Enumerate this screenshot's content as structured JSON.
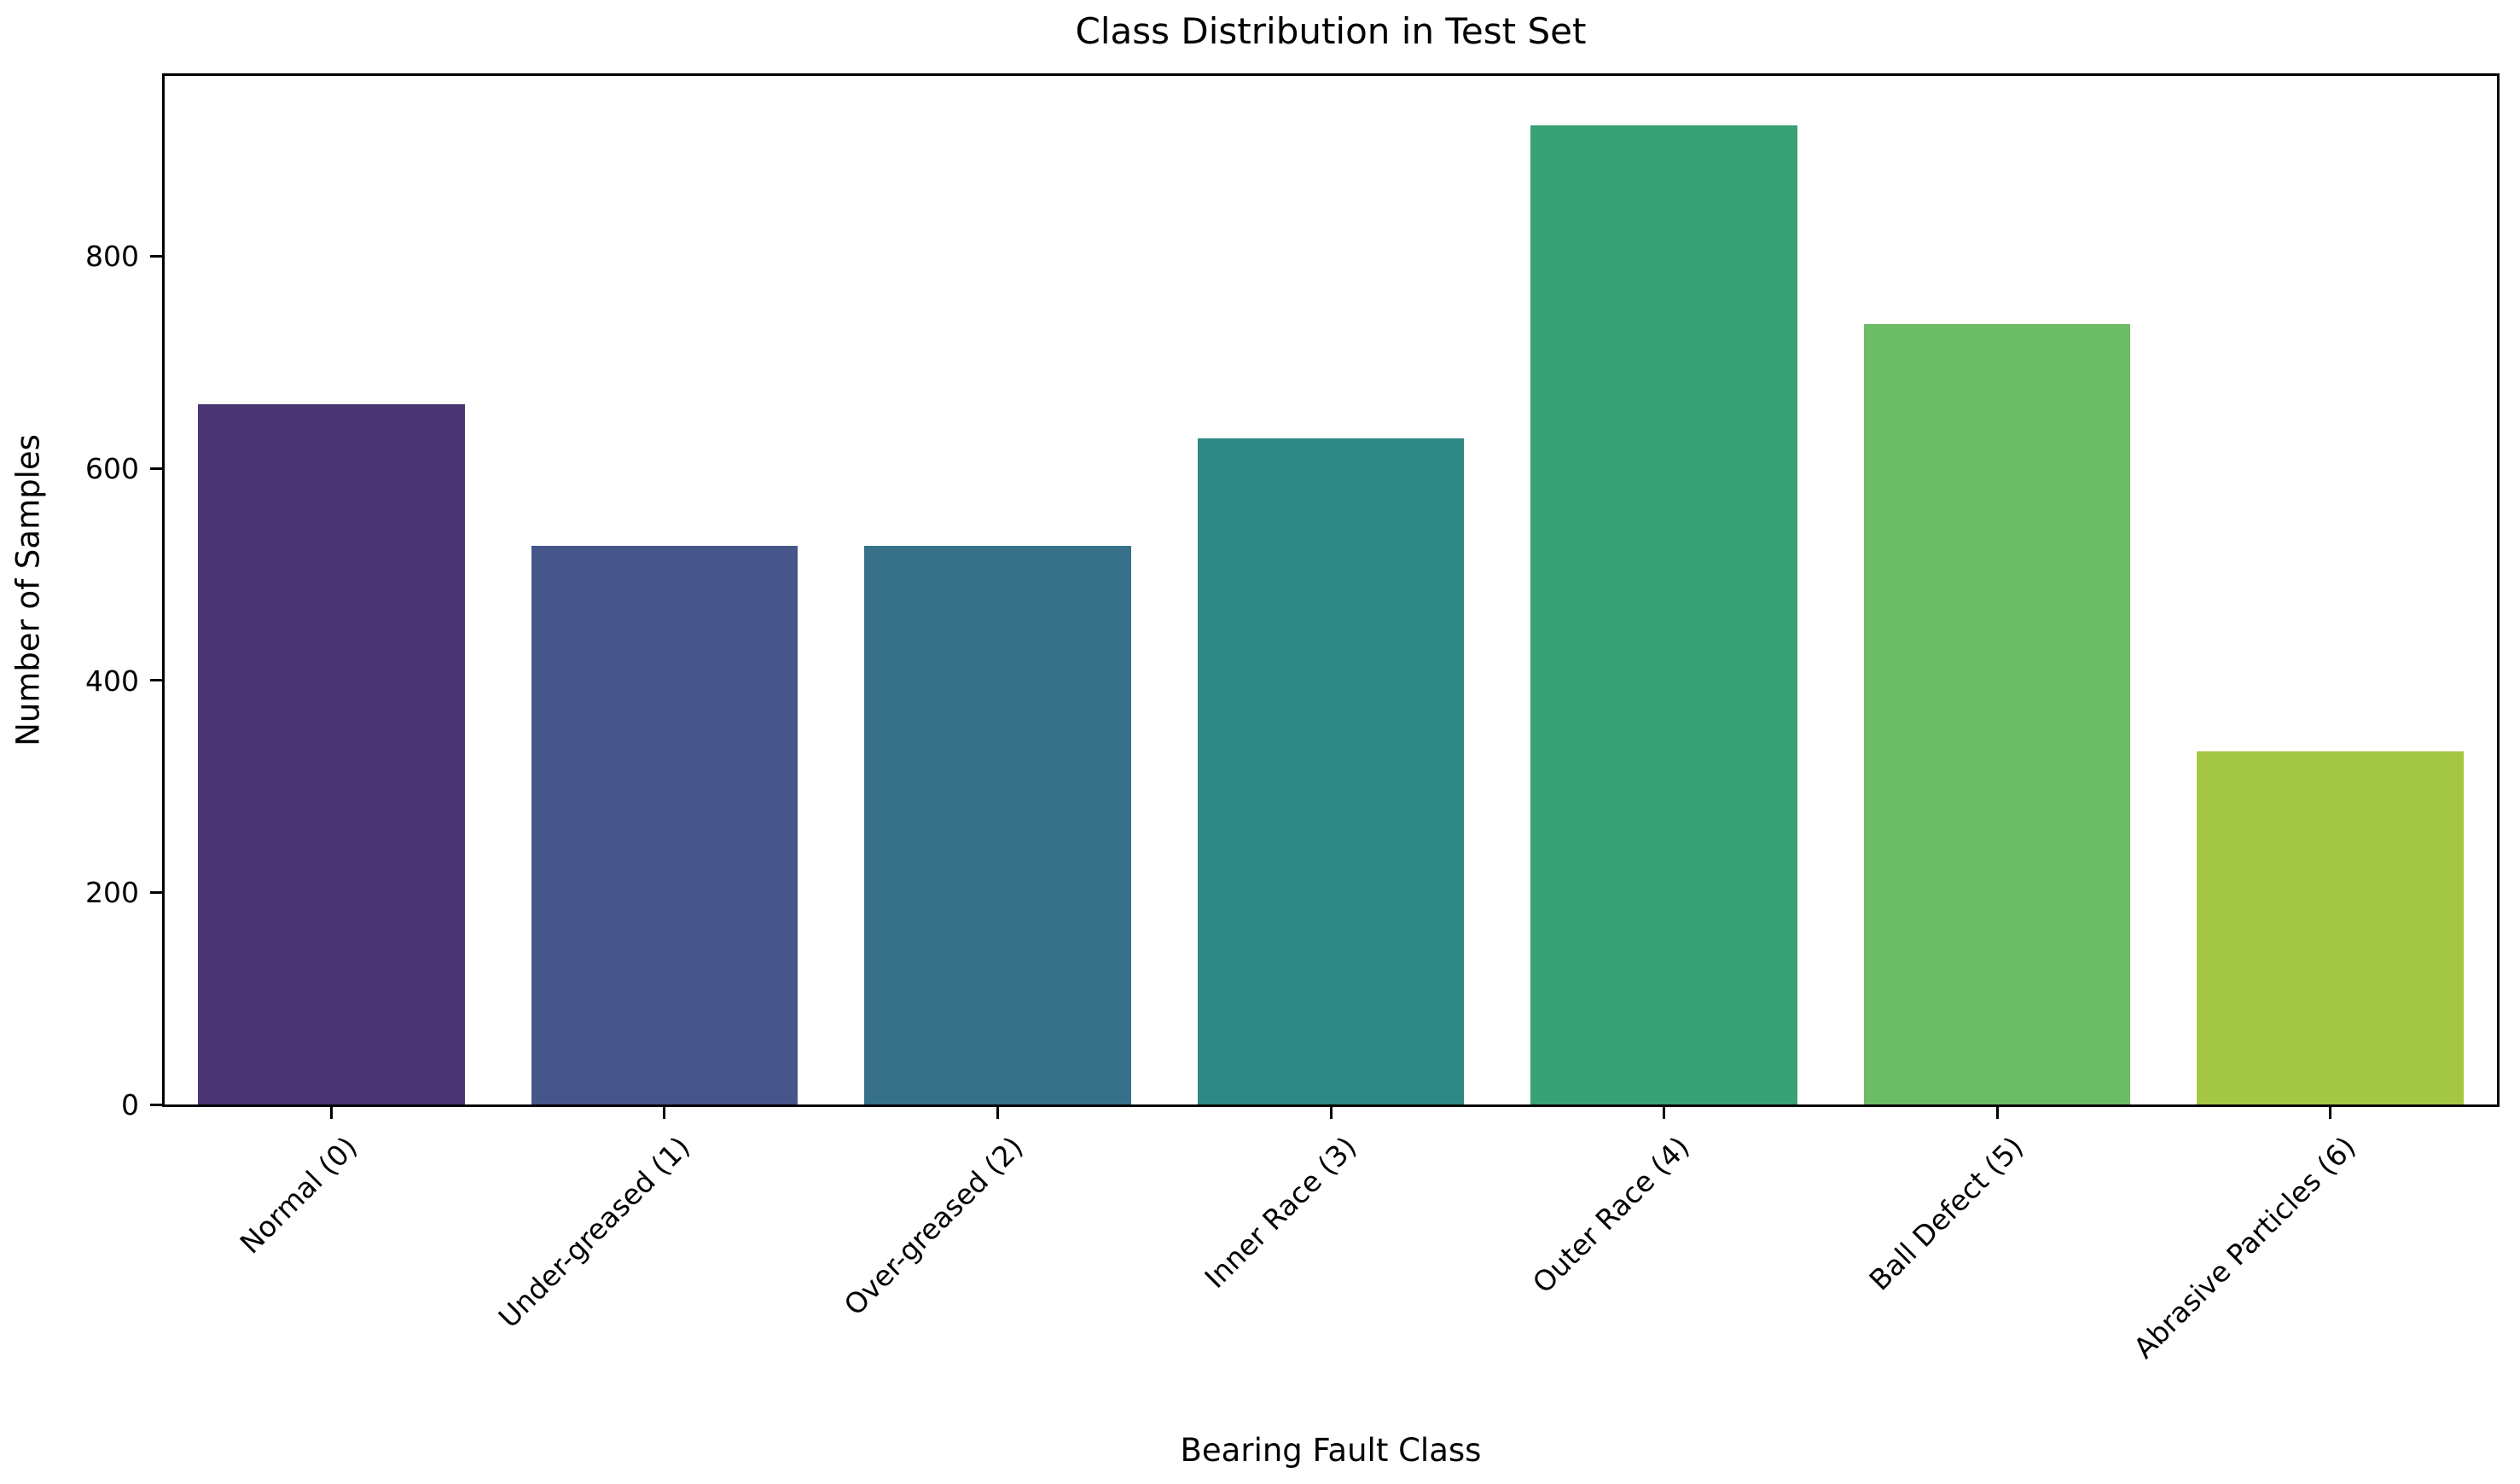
{
  "chart_data": {
    "type": "bar",
    "title": "Class Distribution in Test Set",
    "xlabel": "Bearing Fault Class",
    "ylabel": "Number of Samples",
    "categories": [
      "Normal (0)",
      "Under-greased (1)",
      "Over-greased (2)",
      "Inner Race (3)",
      "Outer Race (4)",
      "Ball Defect (5)",
      "Abrasive Particles (6)"
    ],
    "values": [
      660,
      527,
      527,
      628,
      923,
      736,
      333
    ],
    "bar_colors": [
      "#493571",
      "#46568a",
      "#377089",
      "#2e8883",
      "#39a177",
      "#6bbc65",
      "#a4c743"
    ],
    "yticks": [
      0,
      200,
      400,
      600,
      800
    ],
    "ylim": [
      0,
      970
    ],
    "bar_width_fraction": 0.8,
    "xtick_rotation_deg": 45,
    "grid": "off",
    "legend": "none",
    "axis_color": "#000000",
    "background_color": "#ffffff"
  }
}
